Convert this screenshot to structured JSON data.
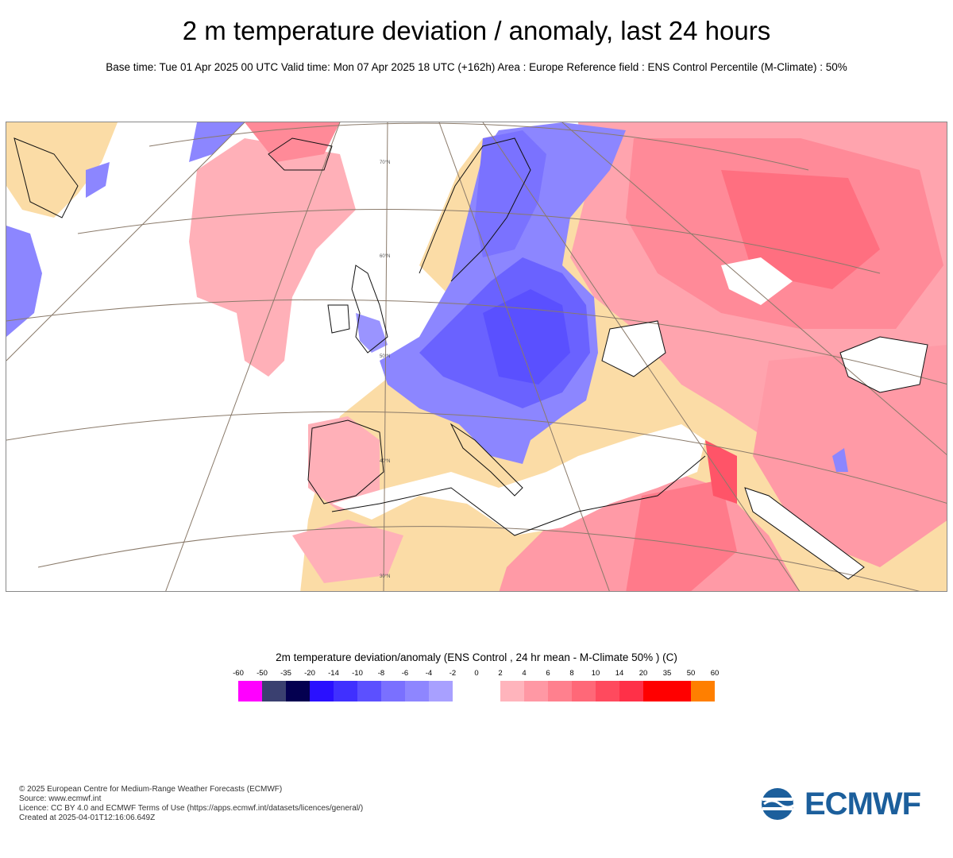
{
  "header": {
    "title": "2 m temperature deviation / anomaly, last 24 hours",
    "subtitle": "Base time: Tue 01 Apr 2025 00 UTC Valid time: Mon 07 Apr 2025 18 UTC (+162h) Area : Europe Reference field : ENS Control Percentile (M-Climate) : 50%"
  },
  "map": {
    "region": "Europe",
    "lat_labels": [
      "70°N",
      "60°N",
      "50°N",
      "40°N",
      "30°N"
    ],
    "anomaly_colors": {
      "cold_strong": "#5555ff",
      "cold_mid": "#7777ff",
      "cold_light": "#a0a0ff",
      "neutral": "#ffffff",
      "land_base": "#fbdca6",
      "warm_light": "#ffb0b8",
      "warm_mid": "#ff8896",
      "warm_strong": "#ff6778",
      "warm_extra": "#ff4a5c"
    }
  },
  "legend": {
    "title": "2m temperature deviation/anomaly (ENS Control , 24 hr mean - M-Climate 50% ) (C)",
    "ticks": [
      "-60",
      "-50",
      "-35",
      "-20",
      "-14",
      "-10",
      "-8",
      "-6",
      "-4",
      "-2",
      "0",
      "2",
      "4",
      "6",
      "8",
      "10",
      "14",
      "20",
      "35",
      "50",
      "60"
    ],
    "colors": [
      "#ff00ff",
      "#3a4070",
      "#040050",
      "#2a10ff",
      "#4030ff",
      "#5c50ff",
      "#7a70ff",
      "#8e86ff",
      "#a8a0ff",
      "#ffffff",
      "#ffffff",
      "#ffb4bc",
      "#ff98a4",
      "#ff808e",
      "#ff6878",
      "#ff4a5e",
      "#ff3048",
      "#ff0000",
      "#ff0000",
      "#ff7f00"
    ]
  },
  "footer": {
    "lines": [
      "© 2025 European Centre for Medium-Range Weather Forecasts (ECMWF)",
      "Source: www.ecmwf.int",
      "Licence: CC BY 4.0 and ECMWF Terms of Use (https://apps.ecmwf.int/datasets/licences/general/)",
      "Created at 2025-04-01T12:16:06.649Z"
    ]
  },
  "logo": {
    "text": "ECMWF",
    "color": "#1c5f9c"
  }
}
